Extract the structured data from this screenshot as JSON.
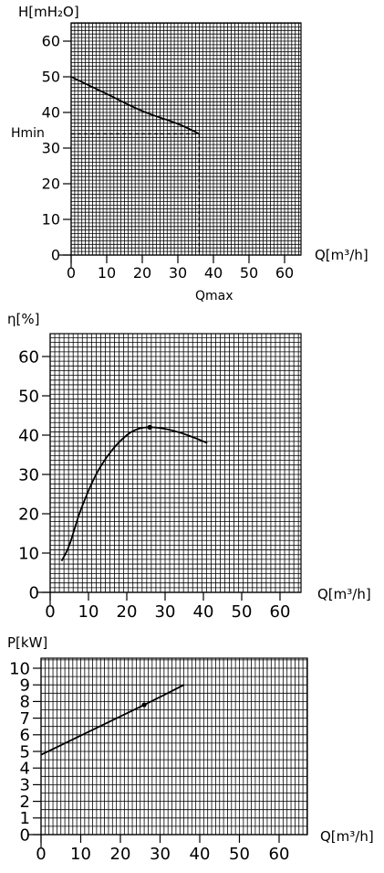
{
  "chart_data": [
    {
      "type": "line",
      "ylabel": "H[mH₂O]",
      "xlabel": "Q[m³/h]",
      "xlim": [
        0,
        62
      ],
      "ylim": [
        0,
        65
      ],
      "x_ticks": [
        0,
        10,
        20,
        30,
        40,
        50,
        60
      ],
      "y_ticks": [
        0,
        10,
        20,
        30,
        40,
        50,
        60
      ],
      "series": [
        {
          "x": [
            0,
            10,
            20,
            30,
            36
          ],
          "y": [
            50,
            45.2,
            40.4,
            36.8,
            34
          ]
        }
      ],
      "reference_lines": [
        {
          "label": "Hmin",
          "axis": "y",
          "value": 34
        },
        {
          "label": "Qmax",
          "axis": "x",
          "value": 36
        }
      ],
      "annotations": [
        "Hmin",
        "Qmax"
      ]
    },
    {
      "type": "line",
      "ylabel": "η[%]",
      "xlabel": "Q[m³/h]",
      "xlim": [
        0,
        65
      ],
      "ylim": [
        0,
        65
      ],
      "x_ticks": [
        0,
        10,
        20,
        30,
        40,
        50,
        60
      ],
      "y_ticks": [
        0,
        10,
        20,
        30,
        40,
        50,
        60
      ],
      "series": [
        {
          "x": [
            3,
            5,
            8,
            12,
            16,
            20,
            23,
            26,
            30,
            34,
            38,
            41
          ],
          "y": [
            8,
            12,
            21,
            30,
            36,
            40,
            41.6,
            42,
            41.6,
            40.6,
            39.2,
            38
          ]
        }
      ],
      "markers": [
        {
          "x": 26,
          "y": 42
        }
      ]
    },
    {
      "type": "line",
      "ylabel": "P[kW]",
      "xlabel": "Q[m³/h]",
      "xlim": [
        0,
        65
      ],
      "ylim": [
        0,
        10.5
      ],
      "x_ticks": [
        0,
        10,
        20,
        30,
        40,
        50,
        60
      ],
      "y_ticks": [
        0,
        1,
        2,
        3,
        4,
        5,
        6,
        7,
        8,
        9,
        10
      ],
      "series": [
        {
          "x": [
            0,
            26,
            36
          ],
          "y": [
            4.8,
            7.8,
            9
          ]
        }
      ],
      "markers": [
        {
          "x": 26,
          "y": 7.8
        }
      ]
    }
  ]
}
